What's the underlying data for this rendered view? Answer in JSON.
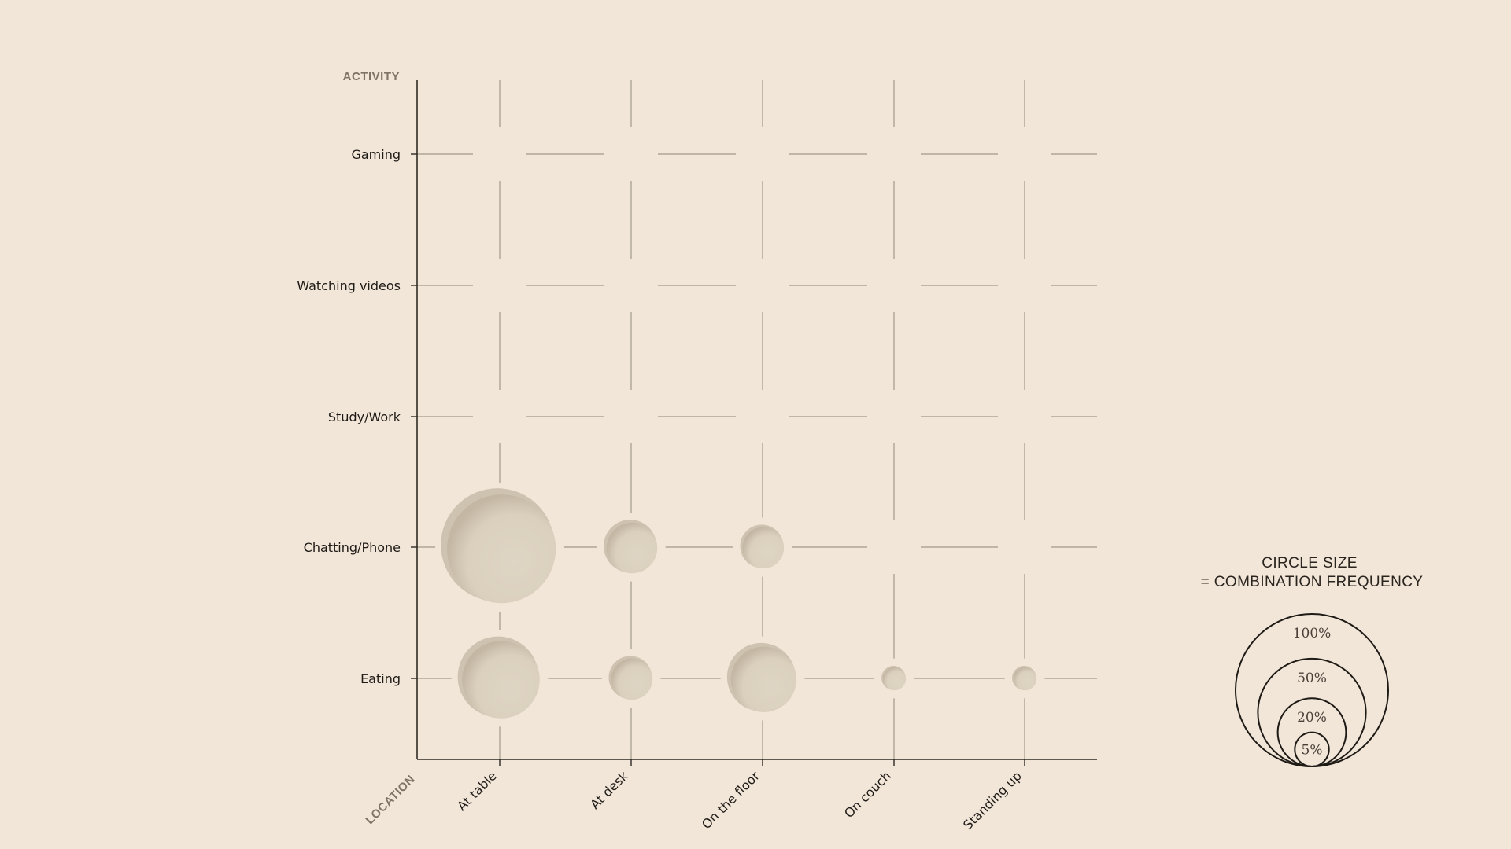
{
  "chart_data": {
    "type": "bubble-matrix",
    "x_axis_title": "LOCATION",
    "y_axis_title": "ACTIVITY",
    "x_categories": [
      "At table",
      "At desk",
      "On the floor",
      "On couch",
      "Standing up"
    ],
    "y_categories": [
      "Gaming",
      "Watching videos",
      "Study/Work",
      "Chatting/Phone",
      "Eating"
    ],
    "size_meaning": "percent",
    "bubbles": [
      {
        "x": "At table",
        "y": "Chatting/Phone",
        "value": 55
      },
      {
        "x": "At desk",
        "y": "Chatting/Phone",
        "value": 12
      },
      {
        "x": "On the floor",
        "y": "Chatting/Phone",
        "value": 8
      },
      {
        "x": "At table",
        "y": "Eating",
        "value": 28
      },
      {
        "x": "At desk",
        "y": "Eating",
        "value": 8
      },
      {
        "x": "On the floor",
        "y": "Eating",
        "value": 20
      },
      {
        "x": "On couch",
        "y": "Eating",
        "value": 2.5
      },
      {
        "x": "Standing up",
        "y": "Eating",
        "value": 2.5
      }
    ],
    "colors": {
      "background": "#f2e6d8",
      "bubble_fill": "#dcd1bf",
      "bubble_shadow": "#c2b6a3",
      "grid": "#a39a8c",
      "axis": "#2e2a25",
      "legend_stroke": "#1e1a16"
    },
    "legend": {
      "title_line1": "CIRCLE SIZE",
      "title_line2": "= COMBINATION FREQUENCY",
      "placement": "right",
      "levels": [
        {
          "label": "100%",
          "value": 100
        },
        {
          "label": "50%",
          "value": 50
        },
        {
          "label": "20%",
          "value": 20
        },
        {
          "label": "5%",
          "value": 5
        }
      ]
    }
  }
}
